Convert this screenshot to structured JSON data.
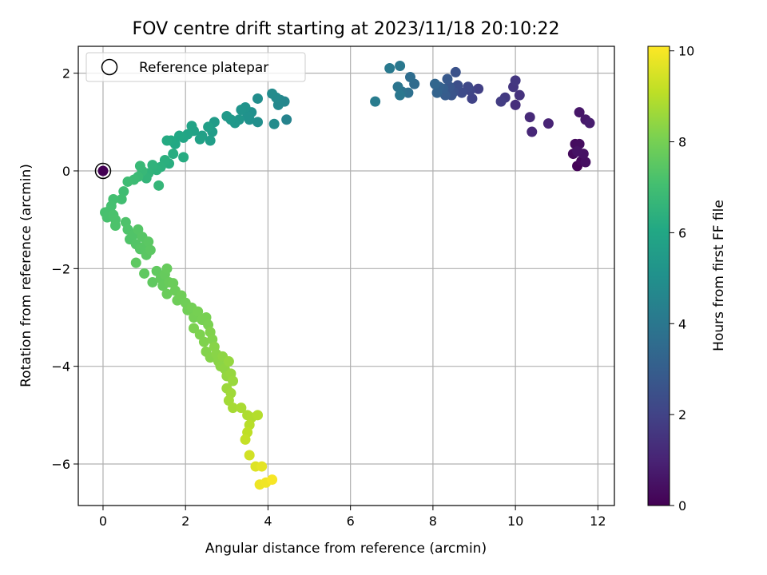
{
  "chart_data": {
    "type": "scatter",
    "title": "FOV centre drift starting at 2023/11/18 20:10:22",
    "xlabel": "Angular distance from reference (arcmin)",
    "ylabel": "Rotation from reference (arcmin)",
    "xlim": [
      -0.6,
      12.4
    ],
    "ylim": [
      -6.85,
      2.55
    ],
    "xticks": [
      0,
      2,
      4,
      6,
      8,
      10,
      12
    ],
    "yticks": [
      -6,
      -4,
      -2,
      0,
      2
    ],
    "grid": true,
    "colormap": "viridis",
    "colorbar": {
      "label": "Hours from first FF file",
      "range": [
        0,
        10.1
      ],
      "ticks": [
        0,
        2,
        4,
        6,
        8,
        10
      ]
    },
    "legend": {
      "entries": [
        "Reference platepar"
      ],
      "placement": "top-left"
    },
    "reference_point": {
      "x": 0,
      "y": 0,
      "c": 0
    },
    "points": [
      {
        "x": 11.5,
        "y": 0.1,
        "c": 0.1
      },
      {
        "x": 11.6,
        "y": 0.2,
        "c": 0.2
      },
      {
        "x": 11.4,
        "y": 0.35,
        "c": 0.25
      },
      {
        "x": 11.45,
        "y": 0.55,
        "c": 0.3
      },
      {
        "x": 11.55,
        "y": 0.55,
        "c": 0.35
      },
      {
        "x": 11.7,
        "y": 0.18,
        "c": 0.4
      },
      {
        "x": 11.65,
        "y": 0.35,
        "c": 0.45
      },
      {
        "x": 11.5,
        "y": 0.4,
        "c": 0.5
      },
      {
        "x": 11.55,
        "y": 1.2,
        "c": 0.6
      },
      {
        "x": 11.7,
        "y": 1.05,
        "c": 0.7
      },
      {
        "x": 11.8,
        "y": 0.98,
        "c": 0.8
      },
      {
        "x": 10.8,
        "y": 0.97,
        "c": 1.0
      },
      {
        "x": 10.4,
        "y": 0.8,
        "c": 1.1
      },
      {
        "x": 10.35,
        "y": 1.1,
        "c": 1.2
      },
      {
        "x": 10.0,
        "y": 1.35,
        "c": 1.35
      },
      {
        "x": 10.1,
        "y": 1.55,
        "c": 1.45
      },
      {
        "x": 9.95,
        "y": 1.72,
        "c": 1.55
      },
      {
        "x": 10.0,
        "y": 1.85,
        "c": 1.6
      },
      {
        "x": 9.75,
        "y": 1.5,
        "c": 1.7
      },
      {
        "x": 9.65,
        "y": 1.42,
        "c": 1.8
      },
      {
        "x": 9.1,
        "y": 1.68,
        "c": 1.9
      },
      {
        "x": 8.95,
        "y": 1.48,
        "c": 2.0
      },
      {
        "x": 8.9,
        "y": 1.65,
        "c": 2.1
      },
      {
        "x": 8.85,
        "y": 1.72,
        "c": 2.2
      },
      {
        "x": 8.7,
        "y": 1.6,
        "c": 2.3
      },
      {
        "x": 8.6,
        "y": 1.75,
        "c": 2.4
      },
      {
        "x": 8.5,
        "y": 1.62,
        "c": 2.5
      },
      {
        "x": 8.55,
        "y": 2.02,
        "c": 2.55
      },
      {
        "x": 8.45,
        "y": 1.55,
        "c": 2.6
      },
      {
        "x": 8.4,
        "y": 1.72,
        "c": 2.7
      },
      {
        "x": 8.35,
        "y": 1.88,
        "c": 2.8
      },
      {
        "x": 8.3,
        "y": 1.55,
        "c": 2.9
      },
      {
        "x": 8.25,
        "y": 1.68,
        "c": 3.0
      },
      {
        "x": 8.15,
        "y": 1.72,
        "c": 3.1
      },
      {
        "x": 8.1,
        "y": 1.6,
        "c": 3.2
      },
      {
        "x": 8.05,
        "y": 1.78,
        "c": 3.3
      },
      {
        "x": 7.55,
        "y": 1.78,
        "c": 3.5
      },
      {
        "x": 7.45,
        "y": 1.92,
        "c": 3.6
      },
      {
        "x": 7.4,
        "y": 1.6,
        "c": 3.7
      },
      {
        "x": 7.25,
        "y": 1.62,
        "c": 3.8
      },
      {
        "x": 7.15,
        "y": 1.72,
        "c": 3.9
      },
      {
        "x": 7.2,
        "y": 1.55,
        "c": 4.0
      },
      {
        "x": 7.2,
        "y": 2.15,
        "c": 4.05
      },
      {
        "x": 6.95,
        "y": 2.1,
        "c": 4.1
      },
      {
        "x": 6.6,
        "y": 1.42,
        "c": 4.2
      },
      {
        "x": 4.45,
        "y": 1.05,
        "c": 4.5
      },
      {
        "x": 4.4,
        "y": 1.42,
        "c": 4.6
      },
      {
        "x": 4.3,
        "y": 1.45,
        "c": 4.65
      },
      {
        "x": 4.25,
        "y": 1.35,
        "c": 4.7
      },
      {
        "x": 4.2,
        "y": 1.5,
        "c": 4.75
      },
      {
        "x": 4.1,
        "y": 1.58,
        "c": 4.8
      },
      {
        "x": 4.15,
        "y": 0.96,
        "c": 4.85
      },
      {
        "x": 3.75,
        "y": 1.48,
        "c": 4.9
      },
      {
        "x": 3.75,
        "y": 1.0,
        "c": 4.95
      },
      {
        "x": 3.6,
        "y": 1.2,
        "c": 5.0
      },
      {
        "x": 3.55,
        "y": 1.05,
        "c": 5.05
      },
      {
        "x": 3.5,
        "y": 1.12,
        "c": 5.1
      },
      {
        "x": 3.45,
        "y": 1.3,
        "c": 5.15
      },
      {
        "x": 3.35,
        "y": 1.25,
        "c": 5.2
      },
      {
        "x": 3.3,
        "y": 1.05,
        "c": 5.25
      },
      {
        "x": 3.2,
        "y": 0.98,
        "c": 5.3
      },
      {
        "x": 3.1,
        "y": 1.05,
        "c": 5.35
      },
      {
        "x": 3.0,
        "y": 1.12,
        "c": 5.4
      },
      {
        "x": 2.7,
        "y": 1.0,
        "c": 5.5
      },
      {
        "x": 2.65,
        "y": 0.8,
        "c": 5.55
      },
      {
        "x": 2.6,
        "y": 0.62,
        "c": 5.6
      },
      {
        "x": 2.55,
        "y": 0.9,
        "c": 5.65
      },
      {
        "x": 2.4,
        "y": 0.72,
        "c": 5.7
      },
      {
        "x": 2.35,
        "y": 0.65,
        "c": 5.75
      },
      {
        "x": 2.2,
        "y": 0.82,
        "c": 5.8
      },
      {
        "x": 2.15,
        "y": 0.92,
        "c": 5.85
      },
      {
        "x": 2.05,
        "y": 0.75,
        "c": 5.9
      },
      {
        "x": 1.95,
        "y": 0.68,
        "c": 5.95
      },
      {
        "x": 1.85,
        "y": 0.72,
        "c": 6.0
      },
      {
        "x": 1.75,
        "y": 0.55,
        "c": 6.05
      },
      {
        "x": 1.65,
        "y": 0.62,
        "c": 6.1
      },
      {
        "x": 1.55,
        "y": 0.62,
        "c": 6.15
      },
      {
        "x": 1.95,
        "y": 0.28,
        "c": 6.2
      },
      {
        "x": 1.7,
        "y": 0.35,
        "c": 6.25
      },
      {
        "x": 1.6,
        "y": 0.15,
        "c": 6.3
      },
      {
        "x": 1.5,
        "y": 0.22,
        "c": 6.35
      },
      {
        "x": 1.4,
        "y": 0.08,
        "c": 6.4
      },
      {
        "x": 1.3,
        "y": 0.02,
        "c": 6.45
      },
      {
        "x": 1.2,
        "y": 0.12,
        "c": 6.5
      },
      {
        "x": 1.1,
        "y": -0.05,
        "c": 6.55
      },
      {
        "x": 1.05,
        "y": -0.15,
        "c": 6.6
      },
      {
        "x": 1.35,
        "y": -0.3,
        "c": 6.65
      },
      {
        "x": 0.95,
        "y": 0.0,
        "c": 6.7
      },
      {
        "x": 0.9,
        "y": 0.1,
        "c": 6.75
      },
      {
        "x": 0.85,
        "y": -0.12,
        "c": 6.8
      },
      {
        "x": 0.75,
        "y": -0.18,
        "c": 6.85
      },
      {
        "x": 0.6,
        "y": -0.22,
        "c": 6.9
      },
      {
        "x": 0.5,
        "y": -0.42,
        "c": 6.95
      },
      {
        "x": 0.45,
        "y": -0.58,
        "c": 7.0
      },
      {
        "x": 0.25,
        "y": -0.58,
        "c": 7.05
      },
      {
        "x": 0.2,
        "y": -0.72,
        "c": 7.08
      },
      {
        "x": 0.15,
        "y": -0.82,
        "c": 7.1
      },
      {
        "x": 0.05,
        "y": -0.85,
        "c": 7.12
      },
      {
        "x": 0.1,
        "y": -0.95,
        "c": 7.15
      },
      {
        "x": 0.25,
        "y": -0.9,
        "c": 7.18
      },
      {
        "x": 0.3,
        "y": -1.0,
        "c": 7.2
      },
      {
        "x": 0.3,
        "y": -1.12,
        "c": 7.22
      },
      {
        "x": 0.55,
        "y": -1.05,
        "c": 7.25
      },
      {
        "x": 0.6,
        "y": -1.2,
        "c": 7.28
      },
      {
        "x": 0.65,
        "y": -1.4,
        "c": 7.3
      },
      {
        "x": 0.75,
        "y": -1.3,
        "c": 7.32
      },
      {
        "x": 0.8,
        "y": -1.5,
        "c": 7.35
      },
      {
        "x": 0.85,
        "y": -1.2,
        "c": 7.38
      },
      {
        "x": 0.9,
        "y": -1.6,
        "c": 7.4
      },
      {
        "x": 0.95,
        "y": -1.35,
        "c": 7.42
      },
      {
        "x": 1.0,
        "y": -1.55,
        "c": 7.45
      },
      {
        "x": 1.05,
        "y": -1.72,
        "c": 7.48
      },
      {
        "x": 1.1,
        "y": -1.45,
        "c": 7.5
      },
      {
        "x": 1.15,
        "y": -1.62,
        "c": 7.52
      },
      {
        "x": 0.8,
        "y": -1.88,
        "c": 7.55
      },
      {
        "x": 1.0,
        "y": -2.1,
        "c": 7.58
      },
      {
        "x": 1.2,
        "y": -2.28,
        "c": 7.6
      },
      {
        "x": 1.3,
        "y": -2.05,
        "c": 7.62
      },
      {
        "x": 1.4,
        "y": -2.2,
        "c": 7.65
      },
      {
        "x": 1.45,
        "y": -2.35,
        "c": 7.68
      },
      {
        "x": 1.5,
        "y": -2.12,
        "c": 7.7
      },
      {
        "x": 1.55,
        "y": -2.0,
        "c": 7.72
      },
      {
        "x": 1.6,
        "y": -2.28,
        "c": 7.75
      },
      {
        "x": 1.55,
        "y": -2.52,
        "c": 7.78
      },
      {
        "x": 1.7,
        "y": -2.3,
        "c": 7.8
      },
      {
        "x": 1.75,
        "y": -2.45,
        "c": 7.82
      },
      {
        "x": 1.8,
        "y": -2.65,
        "c": 7.85
      },
      {
        "x": 1.9,
        "y": -2.55,
        "c": 7.88
      },
      {
        "x": 2.0,
        "y": -2.7,
        "c": 7.9
      },
      {
        "x": 2.05,
        "y": -2.85,
        "c": 7.92
      },
      {
        "x": 2.15,
        "y": -2.8,
        "c": 7.95
      },
      {
        "x": 2.2,
        "y": -3.0,
        "c": 7.98
      },
      {
        "x": 2.3,
        "y": -2.88,
        "c": 8.0
      },
      {
        "x": 2.4,
        "y": -3.05,
        "c": 8.02
      },
      {
        "x": 2.5,
        "y": -3.0,
        "c": 8.05
      },
      {
        "x": 2.55,
        "y": -3.15,
        "c": 8.08
      },
      {
        "x": 2.2,
        "y": -3.22,
        "c": 8.1
      },
      {
        "x": 2.35,
        "y": -3.35,
        "c": 8.12
      },
      {
        "x": 2.45,
        "y": -3.5,
        "c": 8.15
      },
      {
        "x": 2.6,
        "y": -3.3,
        "c": 8.18
      },
      {
        "x": 2.65,
        "y": -3.45,
        "c": 8.2
      },
      {
        "x": 2.5,
        "y": -3.7,
        "c": 8.22
      },
      {
        "x": 2.6,
        "y": -3.82,
        "c": 8.25
      },
      {
        "x": 2.7,
        "y": -3.6,
        "c": 8.28
      },
      {
        "x": 2.75,
        "y": -3.75,
        "c": 8.3
      },
      {
        "x": 2.8,
        "y": -3.9,
        "c": 8.32
      },
      {
        "x": 2.85,
        "y": -4.0,
        "c": 8.35
      },
      {
        "x": 2.9,
        "y": -3.8,
        "c": 8.38
      },
      {
        "x": 2.95,
        "y": -4.05,
        "c": 8.4
      },
      {
        "x": 3.0,
        "y": -4.2,
        "c": 8.45
      },
      {
        "x": 3.05,
        "y": -3.9,
        "c": 8.48
      },
      {
        "x": 3.1,
        "y": -4.15,
        "c": 8.5
      },
      {
        "x": 3.15,
        "y": -4.3,
        "c": 8.55
      },
      {
        "x": 3.0,
        "y": -4.45,
        "c": 8.6
      },
      {
        "x": 3.1,
        "y": -4.55,
        "c": 8.65
      },
      {
        "x": 3.05,
        "y": -4.7,
        "c": 8.7
      },
      {
        "x": 3.15,
        "y": -4.85,
        "c": 8.75
      },
      {
        "x": 3.35,
        "y": -4.85,
        "c": 8.8
      },
      {
        "x": 3.5,
        "y": -5.0,
        "c": 8.85
      },
      {
        "x": 3.6,
        "y": -5.05,
        "c": 8.9
      },
      {
        "x": 3.75,
        "y": -5.0,
        "c": 8.95
      },
      {
        "x": 3.55,
        "y": -5.2,
        "c": 9.0
      },
      {
        "x": 3.5,
        "y": -5.35,
        "c": 9.1
      },
      {
        "x": 3.45,
        "y": -5.5,
        "c": 9.2
      },
      {
        "x": 3.55,
        "y": -5.82,
        "c": 9.4
      },
      {
        "x": 3.7,
        "y": -6.05,
        "c": 9.6
      },
      {
        "x": 3.85,
        "y": -6.05,
        "c": 9.7
      },
      {
        "x": 3.8,
        "y": -6.42,
        "c": 9.85
      },
      {
        "x": 3.95,
        "y": -6.38,
        "c": 9.9
      },
      {
        "x": 4.1,
        "y": -6.32,
        "c": 10.0
      }
    ]
  }
}
